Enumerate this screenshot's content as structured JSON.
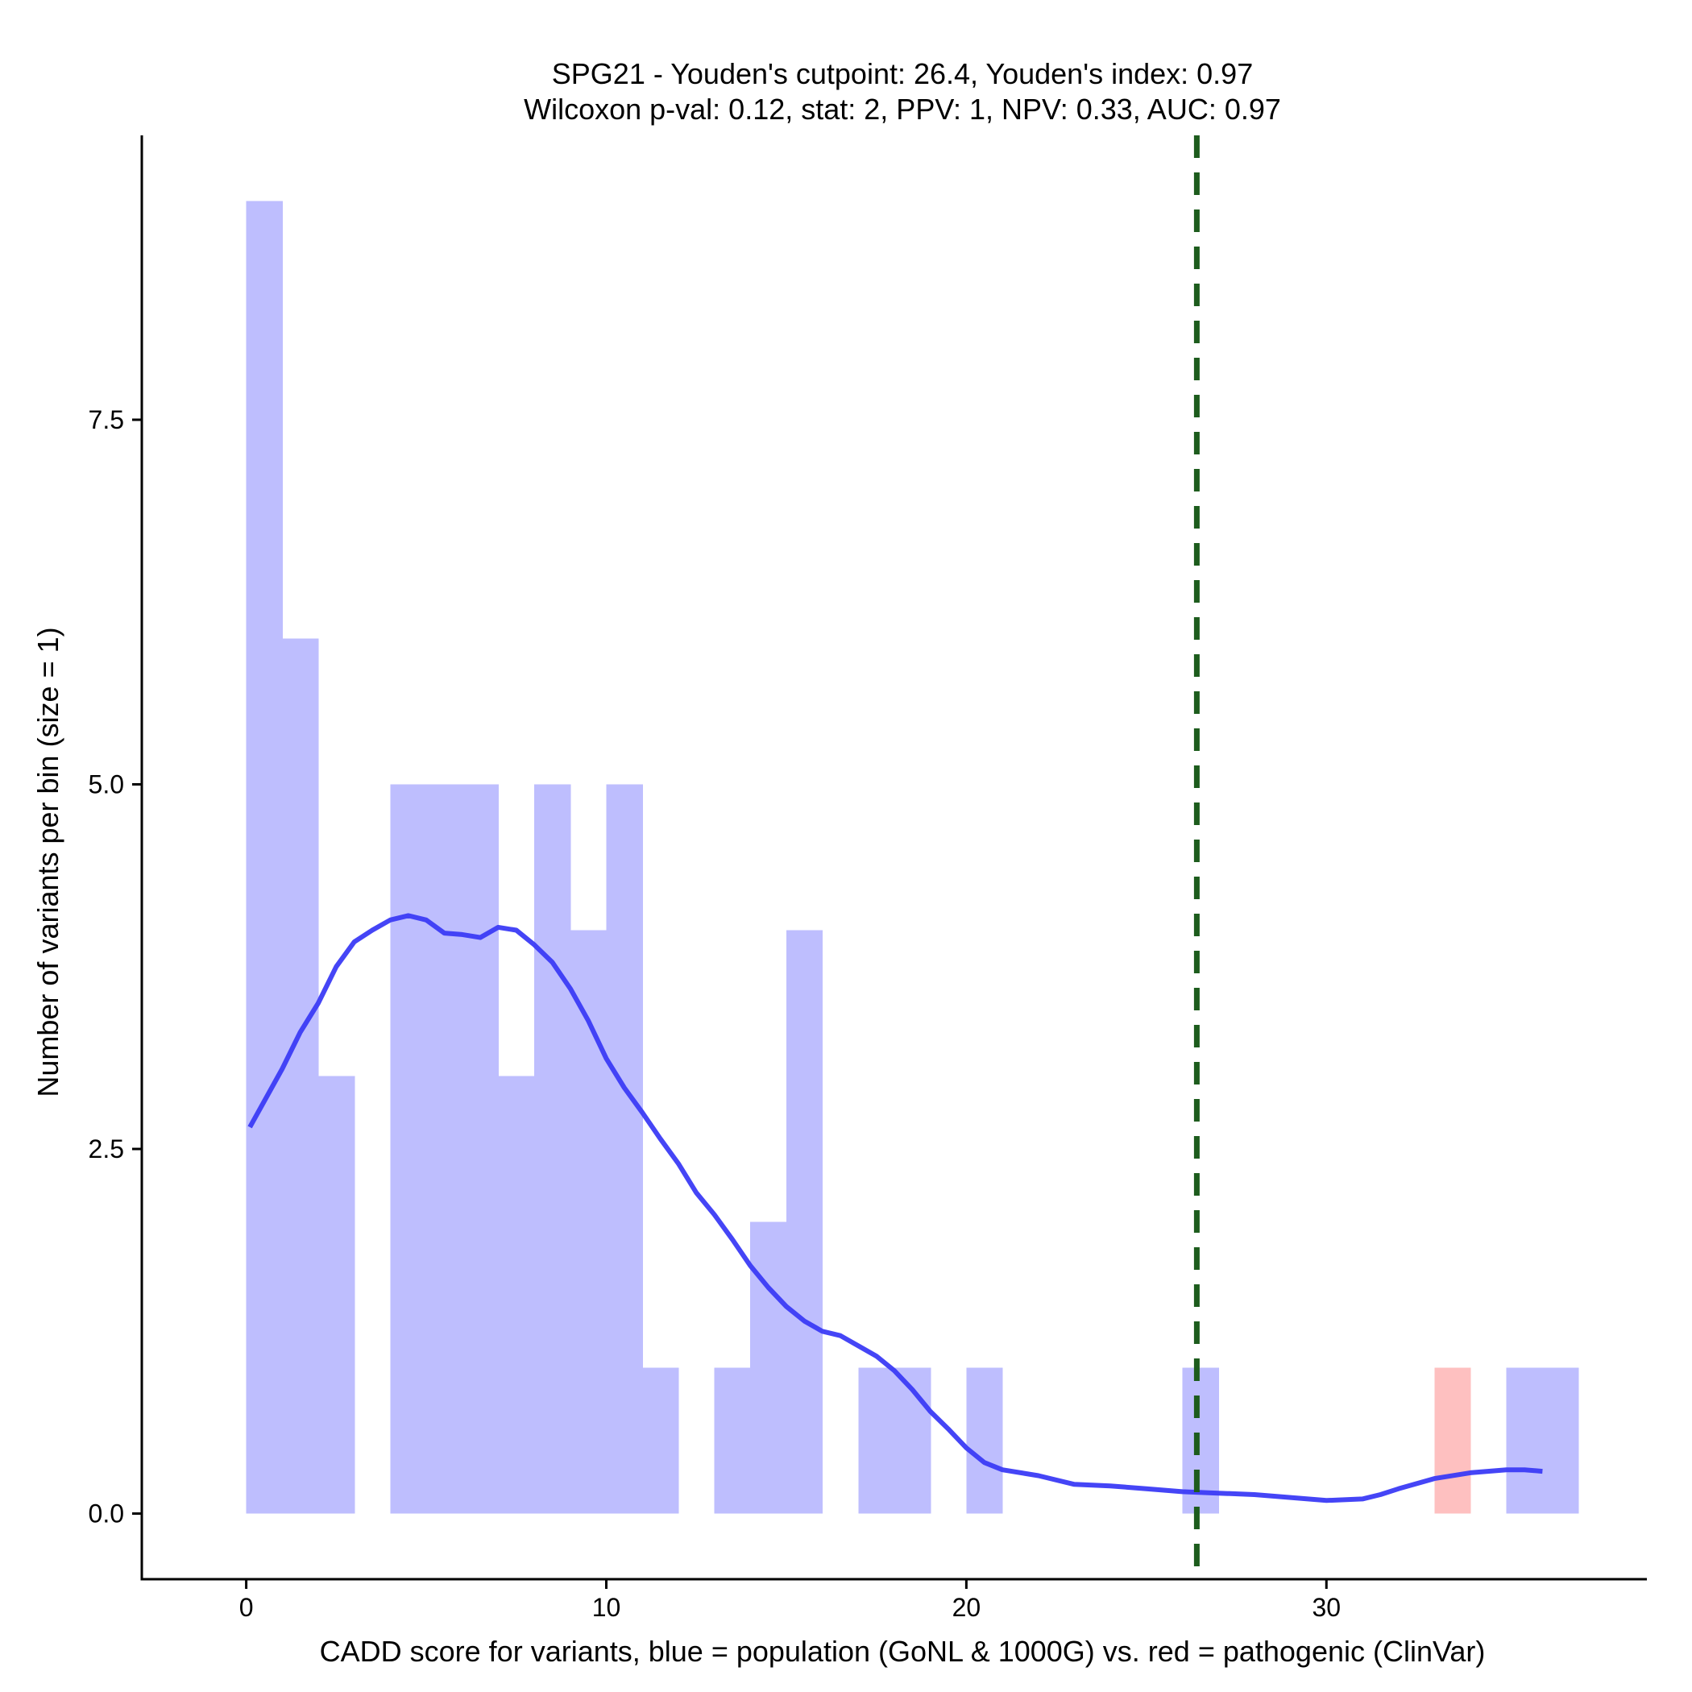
{
  "chart_data": {
    "type": "bar",
    "title": "SPG21 - Youden's cutpoint: 26.4, Youden's index: 0.97",
    "subtitle": "Wilcoxon p-val: 0.12, stat: 2, PPV: 1, NPV: 0.33, AUC: 0.97",
    "xlabel": "CADD score for variants, blue = population (GoNL & 1000G) vs. red = pathogenic (ClinVar)",
    "ylabel": "Number of variants per bin (size = 1)",
    "xlim": [
      -2.9,
      38.9
    ],
    "ylim": [
      -0.45,
      9.45
    ],
    "x_ticks": [
      0,
      10,
      20,
      30
    ],
    "x_tick_labels": [
      "0",
      "10",
      "20",
      "30"
    ],
    "y_ticks": [
      0,
      2.5,
      5,
      7.5
    ],
    "y_tick_labels": [
      "0.0",
      "2.5",
      "5.0",
      "7.5"
    ],
    "bin_width": 1,
    "series": [
      {
        "name": "population (GoNL & 1000G)",
        "color": "#bebefe",
        "bins": [
          {
            "start": 0,
            "count": 9
          },
          {
            "start": 1,
            "count": 6
          },
          {
            "start": 2,
            "count": 3
          },
          {
            "start": 4,
            "count": 5
          },
          {
            "start": 5,
            "count": 5
          },
          {
            "start": 6,
            "count": 5
          },
          {
            "start": 7,
            "count": 3
          },
          {
            "start": 8,
            "count": 5
          },
          {
            "start": 9,
            "count": 4
          },
          {
            "start": 10,
            "count": 5
          },
          {
            "start": 11,
            "count": 1
          },
          {
            "start": 13,
            "count": 1
          },
          {
            "start": 14,
            "count": 2
          },
          {
            "start": 15,
            "count": 4
          },
          {
            "start": 17,
            "count": 1
          },
          {
            "start": 18,
            "count": 1
          },
          {
            "start": 20,
            "count": 1
          },
          {
            "start": 26,
            "count": 1
          },
          {
            "start": 35,
            "count": 1
          },
          {
            "start": 36,
            "count": 1
          }
        ]
      },
      {
        "name": "pathogenic (ClinVar)",
        "color": "#fec0c0",
        "bins": [
          {
            "start": 33,
            "count": 1
          }
        ]
      }
    ],
    "density_curve": {
      "name": "population density",
      "color": "#3b3bf5",
      "points": [
        [
          0.1,
          2.65
        ],
        [
          1.0,
          3.05
        ],
        [
          1.5,
          3.3
        ],
        [
          2.0,
          3.5
        ],
        [
          2.5,
          3.75
        ],
        [
          3.0,
          3.92
        ],
        [
          3.5,
          4.0
        ],
        [
          4.0,
          4.07
        ],
        [
          4.5,
          4.1
        ],
        [
          5.0,
          4.07
        ],
        [
          5.5,
          3.98
        ],
        [
          6.0,
          3.97
        ],
        [
          6.5,
          3.95
        ],
        [
          7.0,
          4.02
        ],
        [
          7.5,
          4.0
        ],
        [
          8.0,
          3.9
        ],
        [
          8.5,
          3.78
        ],
        [
          9.0,
          3.6
        ],
        [
          9.5,
          3.38
        ],
        [
          10.0,
          3.12
        ],
        [
          10.5,
          2.92
        ],
        [
          11.0,
          2.75
        ],
        [
          11.5,
          2.57
        ],
        [
          12.0,
          2.4
        ],
        [
          12.5,
          2.2
        ],
        [
          13.0,
          2.05
        ],
        [
          13.5,
          1.88
        ],
        [
          14.0,
          1.7
        ],
        [
          14.5,
          1.55
        ],
        [
          15.0,
          1.42
        ],
        [
          15.5,
          1.32
        ],
        [
          16.0,
          1.25
        ],
        [
          16.5,
          1.22
        ],
        [
          17.0,
          1.15
        ],
        [
          17.5,
          1.08
        ],
        [
          18.0,
          0.98
        ],
        [
          18.5,
          0.85
        ],
        [
          19.0,
          0.7
        ],
        [
          19.5,
          0.58
        ],
        [
          20.0,
          0.45
        ],
        [
          20.5,
          0.35
        ],
        [
          21.0,
          0.3
        ],
        [
          22.0,
          0.26
        ],
        [
          23.0,
          0.2
        ],
        [
          24.0,
          0.19
        ],
        [
          25.0,
          0.17
        ],
        [
          26.0,
          0.15
        ],
        [
          27.0,
          0.14
        ],
        [
          28.0,
          0.13
        ],
        [
          29.0,
          0.11
        ],
        [
          30.0,
          0.09
        ],
        [
          31.0,
          0.1
        ],
        [
          31.5,
          0.13
        ],
        [
          32.0,
          0.17
        ],
        [
          33.0,
          0.24
        ],
        [
          34.0,
          0.28
        ],
        [
          35.0,
          0.3
        ],
        [
          35.5,
          0.3
        ],
        [
          36.0,
          0.29
        ]
      ]
    },
    "cutpoint": {
      "value": 26.4,
      "color": "#1d5c1d"
    }
  }
}
